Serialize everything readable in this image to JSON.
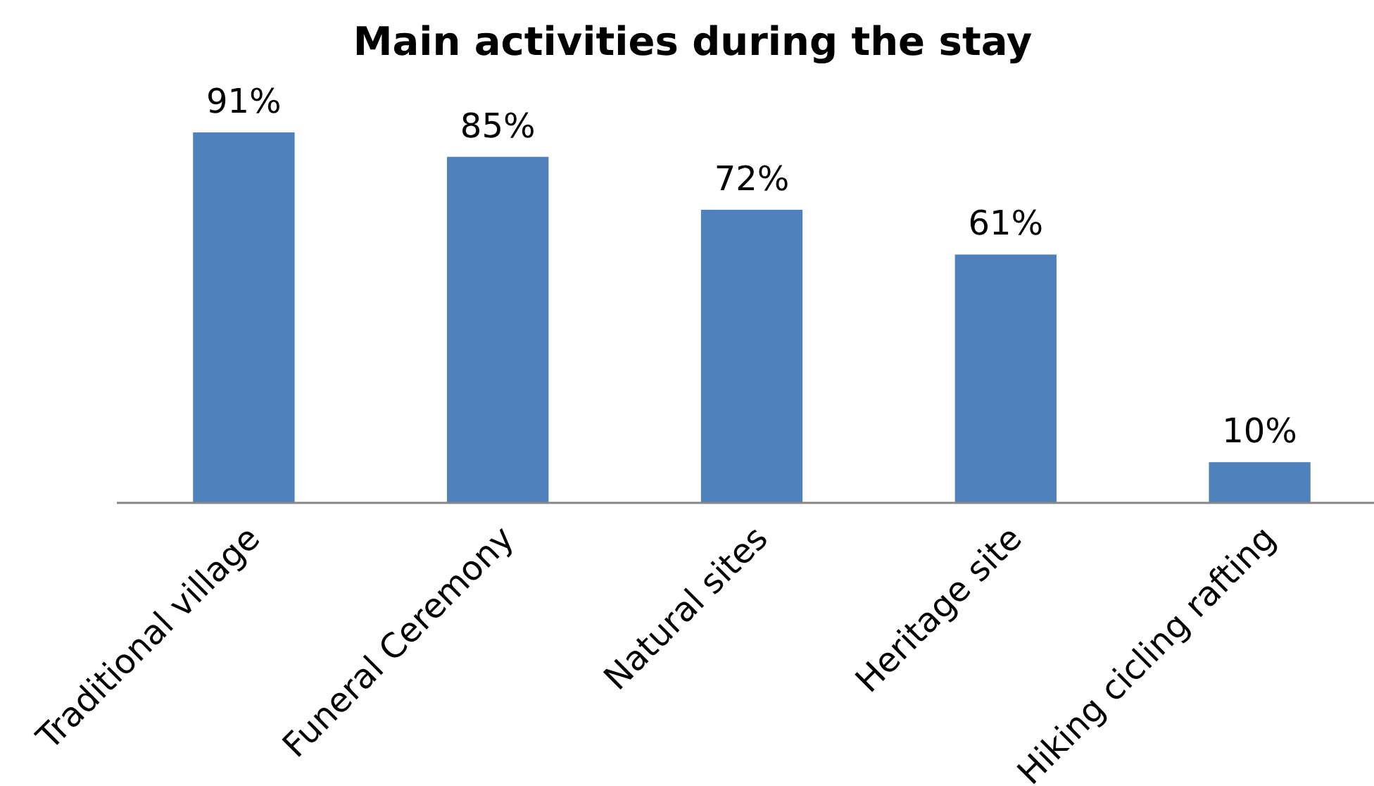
{
  "chart_data": {
    "type": "bar",
    "title": "Main activities during the stay",
    "categories": [
      "Traditional village",
      "Funeral Ceremony",
      "Natural sites",
      "Heritage site",
      "Hiking cicling rafting"
    ],
    "values": [
      91,
      85,
      72,
      61,
      10
    ],
    "value_labels": [
      "91%",
      "85%",
      "72%",
      "61%",
      "10%"
    ],
    "color": "#4f81bd",
    "tick_labels": "x"
  }
}
